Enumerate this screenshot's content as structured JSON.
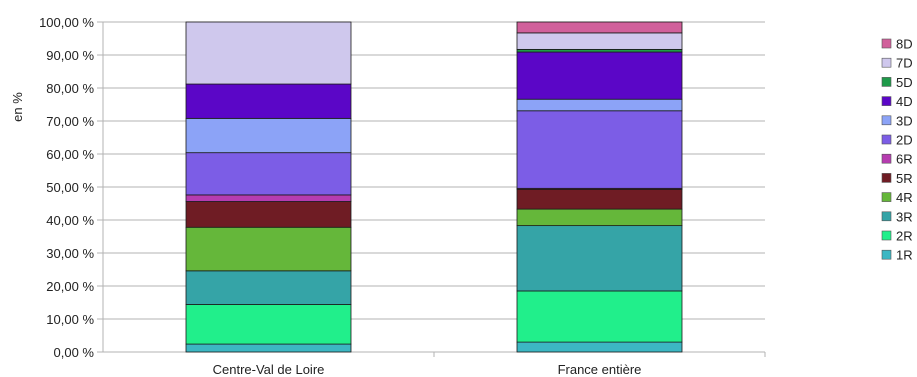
{
  "chart_data": {
    "type": "bar",
    "stacked": true,
    "ylabel": "en %",
    "ylim": [
      0,
      100
    ],
    "y_ticks": [
      "0,00 %",
      "10,00 %",
      "20,00 %",
      "30,00 %",
      "40,00 %",
      "50,00 %",
      "60,00 %",
      "70,00 %",
      "80,00 %",
      "90,00 %",
      "100,00 %"
    ],
    "categories": [
      "Centre-Val de Loire",
      "France entière"
    ],
    "legend_position": "right",
    "grid": true,
    "series": [
      {
        "name": "1R",
        "color": "#3cb7c3",
        "values": [
          2.4,
          3.0
        ]
      },
      {
        "name": "2R",
        "color": "#21ef8b",
        "values": [
          12.0,
          15.5
        ]
      },
      {
        "name": "3R",
        "color": "#35a4a7",
        "values": [
          10.2,
          19.8
        ]
      },
      {
        "name": "4R",
        "color": "#65b73a",
        "values": [
          13.2,
          5.0
        ]
      },
      {
        "name": "5R",
        "color": "#6f1c24",
        "values": [
          7.8,
          6.0
        ]
      },
      {
        "name": "6R",
        "color": "#b63cb0",
        "values": [
          2.0,
          0.3
        ]
      },
      {
        "name": "2D",
        "color": "#7c5de6",
        "values": [
          12.8,
          23.5
        ]
      },
      {
        "name": "3D",
        "color": "#8ca3f7",
        "values": [
          10.4,
          3.5
        ]
      },
      {
        "name": "4D",
        "color": "#5b06c7",
        "values": [
          10.4,
          14.3
        ]
      },
      {
        "name": "5D",
        "color": "#1f9a4a",
        "values": [
          0.0,
          0.8
        ]
      },
      {
        "name": "7D",
        "color": "#cfc8ed",
        "values": [
          18.8,
          5.0
        ]
      },
      {
        "name": "8D",
        "color": "#d1609b",
        "values": [
          0.0,
          3.3
        ]
      }
    ]
  }
}
